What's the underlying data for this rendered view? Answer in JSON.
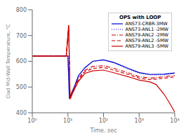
{
  "chart_data": {
    "type": "line",
    "title": "OPS with LOOP",
    "xlabel": "Time, sec",
    "ylabel": "Clad Mid-Wall Temperature, °C",
    "log": "x",
    "grid": false,
    "legend": "upper right",
    "xlim": [
      1,
      10000
    ],
    "ylim": [
      400,
      800
    ],
    "xticks": [
      {
        "value": 1,
        "label": "10⁰"
      },
      {
        "value": 10,
        "label": "10¹"
      },
      {
        "value": 100,
        "label": "10²"
      },
      {
        "value": 1000,
        "label": "10³"
      },
      {
        "value": 10000,
        "label": "10⁴"
      }
    ],
    "yticks": [
      400,
      500,
      600,
      700,
      800
    ],
    "series": [
      {
        "name": "ANS73-CRBR-3MW",
        "color": "#0000cc",
        "line_style": "solid",
        "x": [
          1,
          2,
          5,
          9,
          10,
          11,
          13,
          16,
          20,
          30,
          50,
          100,
          200,
          500,
          1000,
          2000,
          5000,
          10000
        ],
        "values": [
          620,
          620,
          620,
          621,
          621,
          455,
          480,
          510,
          545,
          575,
          600,
          606,
          595,
          572,
          556,
          549,
          550,
          555
        ]
      },
      {
        "name": "ANS73-ANL1 -2MW",
        "color": "#0000cc",
        "line_style": "dotted",
        "x": [
          1,
          2,
          5,
          9,
          10,
          11,
          13,
          16,
          20,
          30,
          50,
          100,
          200,
          500,
          1000,
          2000,
          5000,
          10000
        ],
        "values": [
          620,
          620,
          620,
          621,
          621,
          455,
          480,
          510,
          545,
          575,
          600,
          605,
          594,
          570,
          554,
          547,
          548,
          553
        ]
      },
      {
        "name": "ANS79-ANL2 -2MW",
        "color": "#cc0000",
        "line_style": "dashdot",
        "x": [
          1,
          5,
          9,
          10.5,
          11.5,
          13,
          16,
          20,
          30,
          50,
          100,
          200,
          500,
          1000,
          2000,
          3000,
          5000,
          10000
        ],
        "values": [
          620,
          620,
          620,
          740,
          455,
          475,
          505,
          535,
          565,
          580,
          583,
          572,
          555,
          540,
          535,
          537,
          540,
          545
        ]
      },
      {
        "name": "ANS79-ANL2 -5MW",
        "color": "#cc0000",
        "line_style": "dashed",
        "x": [
          1,
          5,
          9,
          10.5,
          11.5,
          13,
          16,
          20,
          30,
          50,
          100,
          200,
          500,
          1000,
          2000,
          3000,
          5000,
          10000
        ],
        "values": [
          620,
          620,
          620,
          740,
          453,
          472,
          500,
          528,
          560,
          572,
          576,
          565,
          549,
          534,
          529,
          531,
          534,
          540
        ]
      },
      {
        "name": "ANS79-ANL3 -5MW",
        "color": "#cc0000",
        "line_style": "solid",
        "x": [
          1,
          5,
          9,
          10.5,
          11.5,
          13,
          16,
          20,
          30,
          50,
          100,
          200,
          500,
          1000,
          2000,
          3000,
          5000,
          7000,
          10000
        ],
        "values": [
          620,
          620,
          620,
          740,
          453,
          470,
          497,
          523,
          553,
          563,
          566,
          555,
          540,
          527,
          520,
          510,
          472,
          440,
          402
        ]
      }
    ]
  }
}
